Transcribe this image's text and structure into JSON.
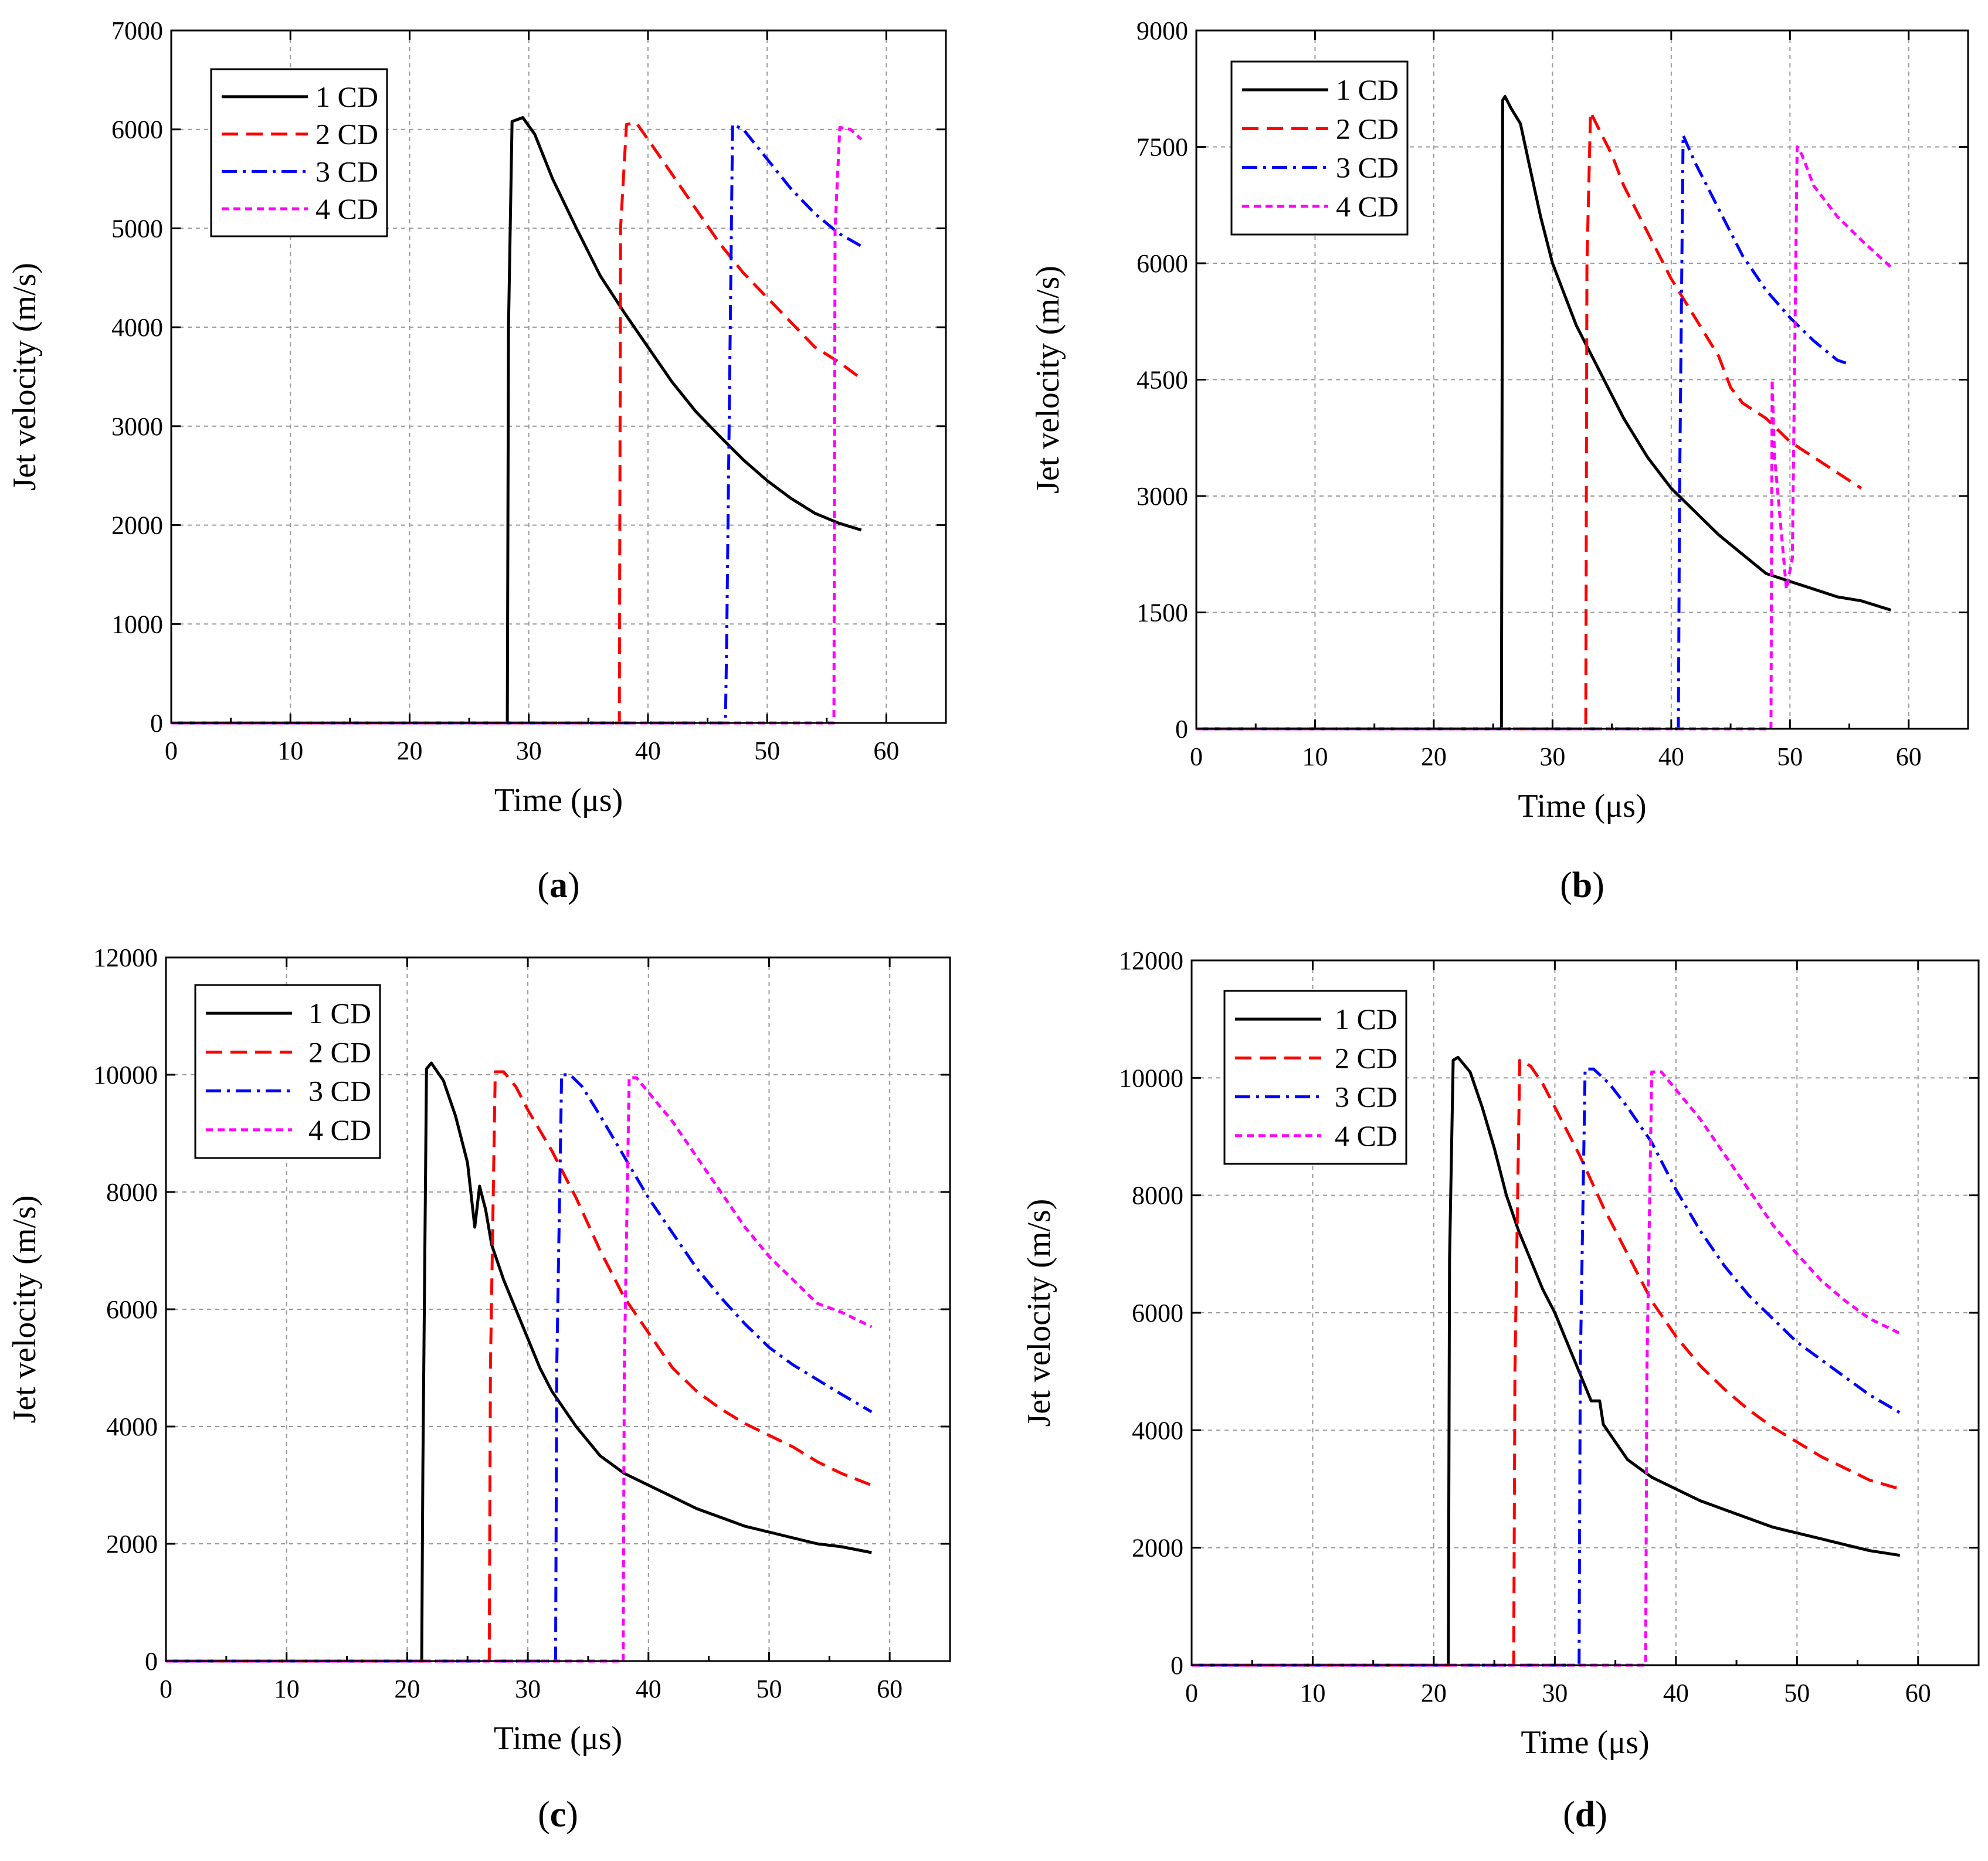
{
  "chart_data": [
    {
      "type": "line",
      "panel": "a",
      "caption": "(a)",
      "xlabel": "Time (μs)",
      "ylabel": "Jet velocity (m/s)",
      "xlim": [
        0,
        65
      ],
      "ylim": [
        0,
        7000
      ],
      "xticks": [
        0,
        10,
        20,
        30,
        40,
        50,
        60
      ],
      "yticks": [
        0,
        1000,
        2000,
        3000,
        4000,
        5000,
        6000,
        7000
      ],
      "legend_position": "top-left",
      "series": [
        {
          "name": "1 CD",
          "color": "#000000",
          "dash": "solid",
          "x": [
            0,
            28.2,
            28.3,
            28.6,
            29.5,
            30.5,
            32,
            34,
            36,
            38,
            40,
            42,
            44,
            46,
            48,
            50,
            52,
            54,
            56,
            57.9
          ],
          "y": [
            0,
            0,
            4000,
            6080,
            6120,
            5950,
            5500,
            5000,
            4520,
            4150,
            3800,
            3450,
            3150,
            2900,
            2660,
            2450,
            2270,
            2120,
            2020,
            1950
          ]
        },
        {
          "name": "2 CD",
          "color": "#ff0000",
          "dash": "dash",
          "x": [
            0,
            37.6,
            37.7,
            38.2,
            39,
            40,
            42,
            44,
            46,
            48,
            50,
            52,
            54,
            56,
            57.9
          ],
          "y": [
            0,
            0,
            5000,
            6050,
            6070,
            5900,
            5550,
            5200,
            4850,
            4550,
            4300,
            4050,
            3800,
            3650,
            3480
          ]
        },
        {
          "name": "3 CD",
          "color": "#0000ff",
          "dash": "dashdot",
          "x": [
            0,
            46.5,
            46.6,
            47.1,
            48,
            50,
            52,
            54,
            56,
            57.9
          ],
          "y": [
            0,
            0,
            800,
            6050,
            6000,
            5700,
            5400,
            5150,
            4950,
            4820
          ]
        },
        {
          "name": "4 CD",
          "color": "#ff00ff",
          "dash": "short",
          "x": [
            0,
            55.6,
            55.7,
            56.1,
            57,
            57.9
          ],
          "y": [
            0,
            0,
            5000,
            6020,
            6000,
            5900
          ]
        }
      ]
    },
    {
      "type": "line",
      "panel": "b",
      "caption": "(b)",
      "xlabel": "Time (μs)",
      "ylabel": "Jet velocity (m/s)",
      "xlim": [
        0,
        65
      ],
      "ylim": [
        0,
        9000
      ],
      "xticks": [
        0,
        10,
        20,
        30,
        40,
        50,
        60
      ],
      "yticks": [
        0,
        1500,
        3000,
        4500,
        6000,
        7500,
        9000
      ],
      "legend_position": "top-left",
      "series": [
        {
          "name": "1 CD",
          "color": "#000000",
          "dash": "solid",
          "x": [
            0,
            25.7,
            25.8,
            26,
            26.5,
            27.3,
            28,
            29,
            30,
            31,
            32,
            33,
            34,
            35,
            36,
            38,
            40,
            42,
            44,
            46,
            48,
            50,
            52,
            54,
            56,
            58.5
          ],
          "y": [
            0,
            0,
            8100,
            8150,
            8000,
            7800,
            7300,
            6600,
            6000,
            5600,
            5200,
            4900,
            4600,
            4300,
            4000,
            3500,
            3100,
            2800,
            2500,
            2250,
            2000,
            1900,
            1800,
            1700,
            1650,
            1530
          ]
        },
        {
          "name": "2 CD",
          "color": "#ff0000",
          "dash": "dash",
          "x": [
            0,
            32.8,
            32.9,
            33.2,
            34,
            35,
            36,
            38,
            40,
            42,
            44,
            45,
            46,
            48,
            50,
            52,
            54,
            56
          ],
          "y": [
            0,
            0,
            6000,
            7950,
            7700,
            7400,
            7000,
            6400,
            5800,
            5300,
            4800,
            4400,
            4200,
            4000,
            3700,
            3500,
            3300,
            3100
          ]
        },
        {
          "name": "3 CD",
          "color": "#0000ff",
          "dash": "dashdot",
          "x": [
            0,
            40.6,
            40.7,
            41,
            42,
            44,
            46,
            48,
            50,
            52,
            54,
            55
          ],
          "y": [
            0,
            0,
            3000,
            7650,
            7300,
            6700,
            6100,
            5650,
            5300,
            5000,
            4750,
            4700
          ]
        },
        {
          "name": "4 CD",
          "color": "#ff00ff",
          "dash": "short",
          "x": [
            0,
            48.4,
            48.5,
            48.7,
            49,
            49.7,
            50.2,
            50.6,
            51,
            52,
            54,
            56,
            58.5
          ],
          "y": [
            0,
            0,
            4500,
            3500,
            3000,
            1800,
            2200,
            7500,
            7400,
            7000,
            6600,
            6300,
            5950
          ]
        }
      ]
    },
    {
      "type": "line",
      "panel": "c",
      "caption": "(c)",
      "xlabel": "Time (μs)",
      "ylabel": "Jet velocity  (m/s)",
      "xlim": [
        0,
        65
      ],
      "ylim": [
        0,
        12000
      ],
      "xticks": [
        0,
        10,
        20,
        30,
        40,
        50,
        60
      ],
      "yticks": [
        0,
        2000,
        4000,
        6000,
        8000,
        10000,
        12000
      ],
      "legend_position": "top-left",
      "series": [
        {
          "name": "1 CD",
          "color": "#000000",
          "dash": "solid",
          "x": [
            0,
            21.2,
            21.3,
            21.6,
            22,
            23,
            24,
            25,
            25.6,
            26,
            26.5,
            27,
            28,
            29,
            30,
            31,
            32,
            33,
            34,
            36,
            38,
            40,
            42,
            44,
            46,
            48,
            50,
            52,
            54,
            56,
            58.5
          ],
          "y": [
            0,
            0,
            3300,
            10100,
            10200,
            9900,
            9300,
            8500,
            7400,
            8100,
            7700,
            7100,
            6500,
            6000,
            5500,
            5000,
            4600,
            4300,
            4000,
            3500,
            3200,
            3000,
            2800,
            2600,
            2450,
            2300,
            2200,
            2100,
            2000,
            1950,
            1850
          ]
        },
        {
          "name": "2 CD",
          "color": "#ff0000",
          "dash": "dash",
          "x": [
            0,
            26.8,
            26.9,
            27.3,
            28,
            29,
            30,
            32,
            34,
            36,
            38,
            40,
            42,
            44,
            46,
            48,
            50,
            52,
            54,
            56,
            58.5
          ],
          "y": [
            0,
            0,
            5000,
            10050,
            10050,
            9800,
            9400,
            8700,
            7900,
            7000,
            6200,
            5600,
            5000,
            4600,
            4300,
            4050,
            3850,
            3650,
            3400,
            3200,
            3000
          ]
        },
        {
          "name": "3 CD",
          "color": "#0000ff",
          "dash": "dashdot",
          "x": [
            0,
            32.3,
            32.4,
            32.8,
            33.5,
            34.5,
            36,
            38,
            40,
            42,
            44,
            46,
            48,
            50,
            52,
            54,
            56,
            58.5
          ],
          "y": [
            0,
            0,
            5000,
            10000,
            10000,
            9800,
            9300,
            8600,
            7900,
            7300,
            6700,
            6200,
            5750,
            5350,
            5050,
            4800,
            4550,
            4250
          ]
        },
        {
          "name": "4 CD",
          "color": "#ff00ff",
          "dash": "short",
          "x": [
            0,
            37.9,
            38,
            38.4,
            39,
            40,
            42,
            44,
            46,
            48,
            50,
            52,
            54,
            56,
            58.5
          ],
          "y": [
            0,
            0,
            5000,
            9950,
            9950,
            9700,
            9200,
            8600,
            8000,
            7400,
            6900,
            6500,
            6100,
            5950,
            5700
          ]
        }
      ]
    },
    {
      "type": "line",
      "panel": "d",
      "caption": "(d)",
      "xlabel": "Time (μs)",
      "ylabel": "Jet velocity (m/s)",
      "xlim": [
        0,
        65
      ],
      "ylim": [
        0,
        12000
      ],
      "xticks": [
        0,
        10,
        20,
        30,
        40,
        50,
        60
      ],
      "yticks": [
        0,
        2000,
        4000,
        6000,
        8000,
        10000,
        12000
      ],
      "legend_position": "top-left",
      "series": [
        {
          "name": "1 CD",
          "color": "#000000",
          "dash": "solid",
          "x": [
            0,
            21.2,
            21.3,
            21.6,
            22,
            23,
            24,
            25,
            26,
            27,
            28,
            29,
            30,
            31,
            32,
            33,
            33.7,
            34,
            35,
            36,
            38,
            40,
            42,
            44,
            46,
            48,
            50,
            52,
            54,
            56,
            58.5
          ],
          "y": [
            0,
            0,
            6900,
            10300,
            10350,
            10100,
            9500,
            8800,
            8000,
            7400,
            6900,
            6400,
            6000,
            5500,
            5000,
            4500,
            4500,
            4100,
            3800,
            3500,
            3200,
            3000,
            2800,
            2650,
            2500,
            2350,
            2250,
            2150,
            2050,
            1950,
            1870
          ]
        },
        {
          "name": "2 CD",
          "color": "#ff0000",
          "dash": "dash",
          "x": [
            0,
            26.6,
            26.7,
            27.1,
            28,
            29,
            30,
            32,
            34,
            36,
            38,
            40,
            42,
            44,
            46,
            48,
            50,
            52,
            54,
            56,
            58.5
          ],
          "y": [
            0,
            0,
            5000,
            10300,
            10200,
            9900,
            9500,
            8700,
            7800,
            7000,
            6200,
            5600,
            5100,
            4700,
            4350,
            4050,
            3800,
            3550,
            3350,
            3150,
            3000
          ]
        },
        {
          "name": "3 CD",
          "color": "#0000ff",
          "dash": "dashdot",
          "x": [
            0,
            32,
            32.1,
            32.5,
            33.2,
            34.5,
            36,
            38,
            40,
            42,
            44,
            46,
            48,
            50,
            52,
            54,
            56,
            58.5
          ],
          "y": [
            0,
            0,
            5000,
            10150,
            10150,
            9900,
            9500,
            8900,
            8100,
            7400,
            6800,
            6300,
            5900,
            5500,
            5200,
            4900,
            4600,
            4300
          ]
        },
        {
          "name": "4 CD",
          "color": "#ff00ff",
          "dash": "short",
          "x": [
            0,
            37.5,
            37.6,
            38,
            38.8,
            40,
            42,
            44,
            46,
            48,
            50,
            52,
            54,
            56,
            58.5
          ],
          "y": [
            0,
            0,
            5000,
            10100,
            10100,
            9800,
            9300,
            8700,
            8100,
            7500,
            7000,
            6550,
            6200,
            5900,
            5650
          ]
        }
      ]
    }
  ]
}
